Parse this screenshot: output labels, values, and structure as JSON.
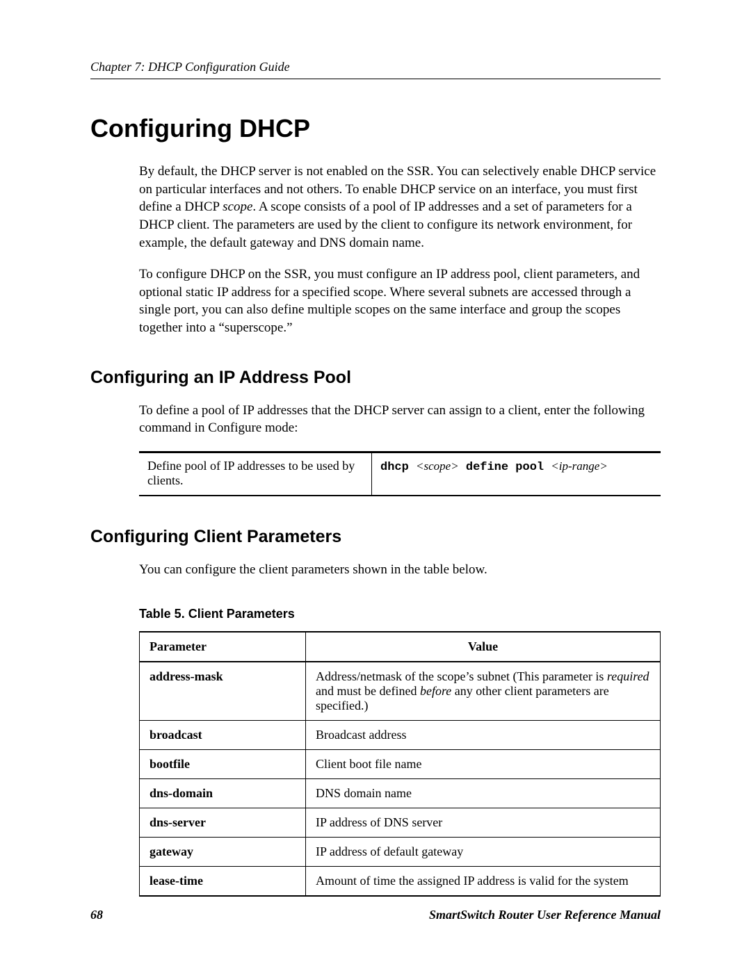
{
  "header": {
    "running_head": "Chapter 7: DHCP Configuration Guide"
  },
  "h1": "Configuring DHCP",
  "intro": {
    "p1_a": "By default, the DHCP server is not enabled on the SSR. You can selectively enable DHCP service on particular interfaces and not others. To enable DHCP service on an interface, you must first define a DHCP ",
    "p1_scope": "scope",
    "p1_b": ". A scope consists of a pool of IP addresses and a set of parameters for a DHCP client. The parameters are used by the client to configure its network environment, for example, the default gateway and DNS domain name.",
    "p2": "To configure DHCP on the SSR, you must configure an IP address pool, client parameters, and optional static IP address for a specified scope. Where several subnets are accessed through a single port, you can also define multiple scopes on the same interface and group the scopes together into a “superscope.”"
  },
  "sec_pool": {
    "heading": "Configuring an IP Address Pool",
    "p": "To define a pool of IP addresses that the DHCP server can assign to a client, enter the following command in Configure mode:",
    "cmd_desc": "Define pool of IP addresses to be used by clients.",
    "cmd_kw1": "dhcp ",
    "cmd_arg1": "<scope>",
    "cmd_kw2": " define pool ",
    "cmd_arg2": "<ip-range>"
  },
  "sec_params": {
    "heading": "Configuring Client Parameters",
    "p": "You can configure the client parameters shown in the table below.",
    "caption": "Table 5.  Client Parameters",
    "col_param": "Parameter",
    "col_value": "Value",
    "rows": {
      "r0": {
        "param": "address-mask",
        "val_a": "Address/netmask of the scope’s subnet (This parameter is ",
        "val_req": "required",
        "val_b": " and must be defined ",
        "val_before": "before",
        "val_c": " any other client parameters are specified.)"
      },
      "r1": {
        "param": "broadcast",
        "val": "Broadcast address"
      },
      "r2": {
        "param": "bootfile",
        "val": "Client boot file name"
      },
      "r3": {
        "param": "dns-domain",
        "val": "DNS domain name"
      },
      "r4": {
        "param": "dns-server",
        "val": "IP address of DNS server"
      },
      "r5": {
        "param": "gateway",
        "val": "IP address of default gateway"
      },
      "r6": {
        "param": "lease-time",
        "val": "Amount of time the assigned IP address is valid for the system"
      }
    }
  },
  "footer": {
    "page": "68",
    "manual": "SmartSwitch Router User Reference Manual"
  }
}
